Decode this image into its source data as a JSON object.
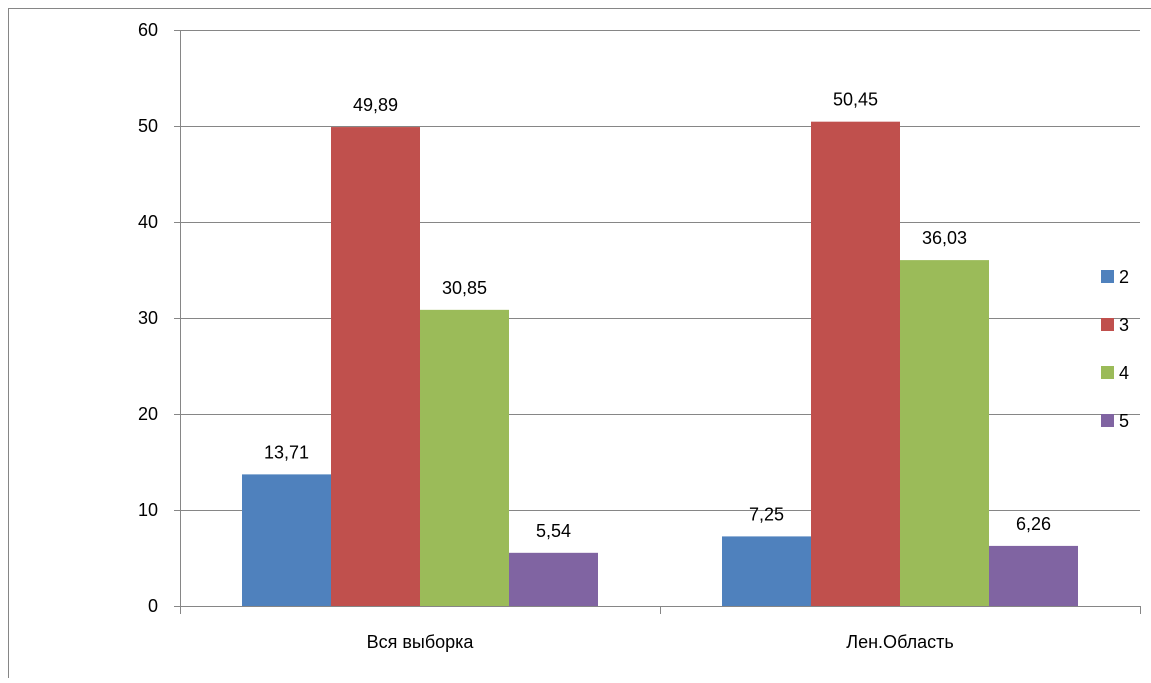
{
  "chart_data": {
    "type": "bar",
    "title": "",
    "xlabel": "",
    "ylabel": "",
    "categories": [
      "Вся выборка",
      "Лен.Область"
    ],
    "series": [
      {
        "name": "2",
        "color": "#4F81BD",
        "values": [
          13.71,
          7.25
        ],
        "labels": [
          "13,71",
          "7,25"
        ]
      },
      {
        "name": "3",
        "color": "#C0504D",
        "values": [
          49.89,
          50.45
        ],
        "labels": [
          "49,89",
          "50,45"
        ]
      },
      {
        "name": "4",
        "color": "#9BBB59",
        "values": [
          30.85,
          36.03
        ],
        "labels": [
          "30,85",
          "36,03"
        ]
      },
      {
        "name": "5",
        "color": "#8064A2",
        "values": [
          5.54,
          6.26
        ],
        "labels": [
          "5,54",
          "6,26"
        ]
      }
    ],
    "ylim": [
      0,
      60
    ],
    "yticks": [
      0,
      10,
      20,
      30,
      40,
      50,
      60
    ],
    "grid": true,
    "legend": "right"
  }
}
